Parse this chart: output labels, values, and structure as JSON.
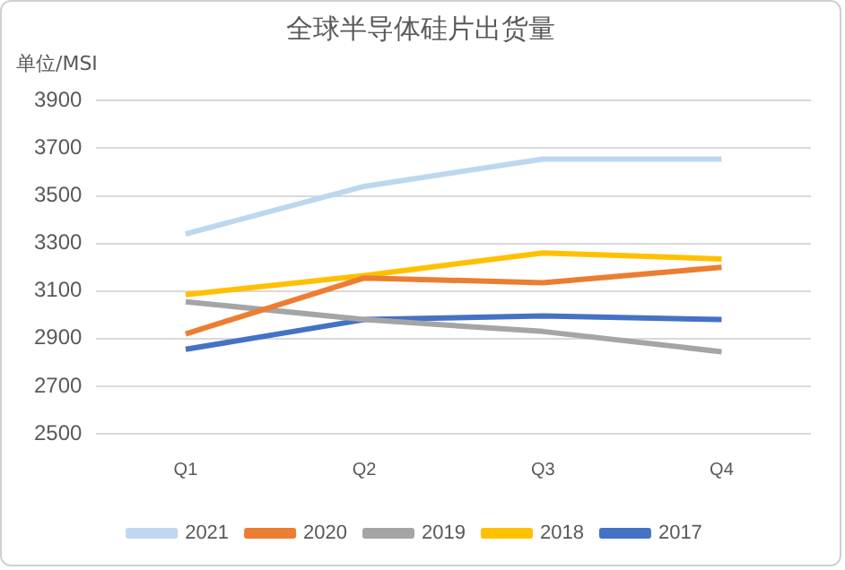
{
  "chart_data": {
    "type": "line",
    "title": "全球半导体硅片出货量",
    "ylabel": "单位/MSI",
    "categories": [
      "Q1",
      "Q2",
      "Q3",
      "Q4"
    ],
    "series": [
      {
        "name": "2021",
        "color": "#bdd7ee",
        "values": [
          3340,
          3540,
          3655,
          3655
        ]
      },
      {
        "name": "2020",
        "color": "#ed7d31",
        "values": [
          2920,
          3155,
          3135,
          3200
        ]
      },
      {
        "name": "2019",
        "color": "#a5a5a5",
        "values": [
          3055,
          2980,
          2930,
          2845
        ]
      },
      {
        "name": "2018",
        "color": "#ffc000",
        "values": [
          3085,
          3165,
          3260,
          3235
        ]
      },
      {
        "name": "2017",
        "color": "#4472c4",
        "values": [
          2855,
          2980,
          2995,
          2980
        ]
      }
    ],
    "ylim": [
      2500,
      3900
    ],
    "yticks": [
      2500,
      2700,
      2900,
      3100,
      3300,
      3500,
      3700,
      3900
    ],
    "grid": "y",
    "legend": "bottom",
    "marker": "none",
    "line_style": "solid"
  }
}
